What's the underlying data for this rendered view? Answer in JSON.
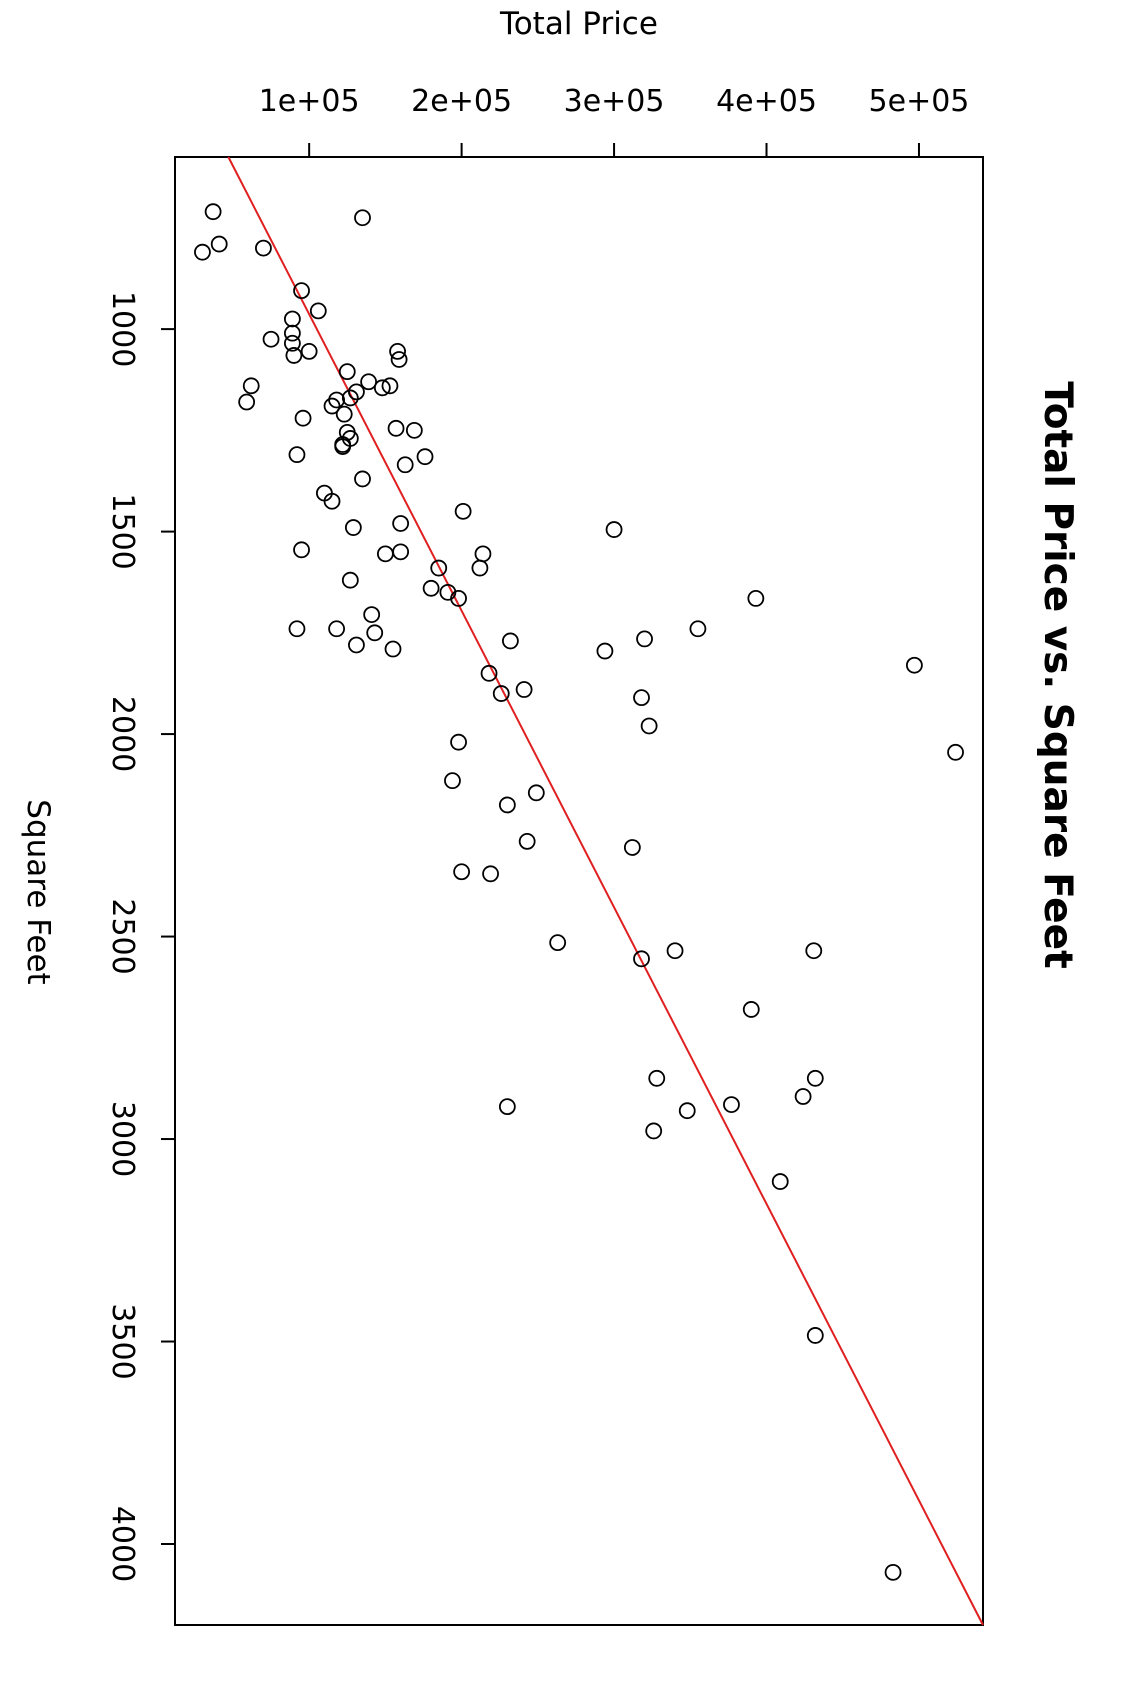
{
  "chart_data": {
    "type": "scatter",
    "title": "Total Price vs. Square Feet",
    "xlabel": "Square Feet",
    "ylabel": "Total Price",
    "x_ticks": [
      "1000",
      "1500",
      "2000",
      "2500",
      "3000",
      "3500",
      "4000"
    ],
    "y_ticks": [
      "1e+05",
      "2e+05",
      "3e+05",
      "4e+05",
      "5e+05"
    ],
    "xlim": [
      575,
      4200
    ],
    "ylim": [
      12000,
      542000
    ],
    "grid": false,
    "legend": "none",
    "colors": {
      "points": "#000000",
      "fit_line": "#e02020"
    },
    "fit_line": {
      "x": [
        575,
        4200
      ],
      "y": [
        47000,
        542000
      ]
    },
    "points": [
      {
        "x": 710,
        "y": 37000
      },
      {
        "x": 725,
        "y": 135000
      },
      {
        "x": 790,
        "y": 41000
      },
      {
        "x": 810,
        "y": 30000
      },
      {
        "x": 800,
        "y": 70000
      },
      {
        "x": 905,
        "y": 95000
      },
      {
        "x": 955,
        "y": 106000
      },
      {
        "x": 975,
        "y": 89000
      },
      {
        "x": 1010,
        "y": 89000
      },
      {
        "x": 1035,
        "y": 89000
      },
      {
        "x": 1025,
        "y": 75000
      },
      {
        "x": 1055,
        "y": 100000
      },
      {
        "x": 1065,
        "y": 90000
      },
      {
        "x": 1055,
        "y": 158000
      },
      {
        "x": 1075,
        "y": 159000
      },
      {
        "x": 1105,
        "y": 125000
      },
      {
        "x": 1130,
        "y": 139000
      },
      {
        "x": 1140,
        "y": 153000
      },
      {
        "x": 1145,
        "y": 148000
      },
      {
        "x": 1140,
        "y": 62000
      },
      {
        "x": 1155,
        "y": 131000
      },
      {
        "x": 1170,
        "y": 127000
      },
      {
        "x": 1180,
        "y": 59000
      },
      {
        "x": 1175,
        "y": 118000
      },
      {
        "x": 1190,
        "y": 115000
      },
      {
        "x": 1210,
        "y": 123000
      },
      {
        "x": 1220,
        "y": 96000
      },
      {
        "x": 1245,
        "y": 157000
      },
      {
        "x": 1250,
        "y": 169000
      },
      {
        "x": 1255,
        "y": 125000
      },
      {
        "x": 1270,
        "y": 127000
      },
      {
        "x": 1285,
        "y": 122000
      },
      {
        "x": 1290,
        "y": 122000
      },
      {
        "x": 1310,
        "y": 92000
      },
      {
        "x": 1315,
        "y": 176000
      },
      {
        "x": 1335,
        "y": 163000
      },
      {
        "x": 1370,
        "y": 135000
      },
      {
        "x": 1405,
        "y": 110000
      },
      {
        "x": 1425,
        "y": 115000
      },
      {
        "x": 1450,
        "y": 201000
      },
      {
        "x": 1480,
        "y": 160000
      },
      {
        "x": 1490,
        "y": 129000
      },
      {
        "x": 1495,
        "y": 300000
      },
      {
        "x": 1545,
        "y": 95000
      },
      {
        "x": 1550,
        "y": 160000
      },
      {
        "x": 1555,
        "y": 150000
      },
      {
        "x": 1555,
        "y": 214000
      },
      {
        "x": 1590,
        "y": 185000
      },
      {
        "x": 1590,
        "y": 212000
      },
      {
        "x": 1620,
        "y": 127000
      },
      {
        "x": 1640,
        "y": 180000
      },
      {
        "x": 1650,
        "y": 191000
      },
      {
        "x": 1665,
        "y": 198000
      },
      {
        "x": 1665,
        "y": 393000
      },
      {
        "x": 1705,
        "y": 141000
      },
      {
        "x": 1740,
        "y": 92000
      },
      {
        "x": 1740,
        "y": 118000
      },
      {
        "x": 1740,
        "y": 355000
      },
      {
        "x": 1750,
        "y": 143000
      },
      {
        "x": 1765,
        "y": 320000
      },
      {
        "x": 1770,
        "y": 232000
      },
      {
        "x": 1780,
        "y": 131000
      },
      {
        "x": 1790,
        "y": 155000
      },
      {
        "x": 1795,
        "y": 294000
      },
      {
        "x": 1830,
        "y": 497000
      },
      {
        "x": 1850,
        "y": 218000
      },
      {
        "x": 1890,
        "y": 241000
      },
      {
        "x": 1900,
        "y": 226000
      },
      {
        "x": 1910,
        "y": 318000
      },
      {
        "x": 1980,
        "y": 323000
      },
      {
        "x": 2020,
        "y": 198000
      },
      {
        "x": 2045,
        "y": 524000
      },
      {
        "x": 2115,
        "y": 194000
      },
      {
        "x": 2145,
        "y": 249000
      },
      {
        "x": 2175,
        "y": 230000
      },
      {
        "x": 2265,
        "y": 243000
      },
      {
        "x": 2280,
        "y": 312000
      },
      {
        "x": 2340,
        "y": 200000
      },
      {
        "x": 2345,
        "y": 219000
      },
      {
        "x": 2515,
        "y": 263000
      },
      {
        "x": 2535,
        "y": 340000
      },
      {
        "x": 2535,
        "y": 431000
      },
      {
        "x": 2555,
        "y": 318000
      },
      {
        "x": 2680,
        "y": 390000
      },
      {
        "x": 2850,
        "y": 328000
      },
      {
        "x": 2850,
        "y": 432000
      },
      {
        "x": 2895,
        "y": 424000
      },
      {
        "x": 2915,
        "y": 377000
      },
      {
        "x": 2920,
        "y": 230000
      },
      {
        "x": 2930,
        "y": 348000
      },
      {
        "x": 2980,
        "y": 326000
      },
      {
        "x": 3105,
        "y": 409000
      },
      {
        "x": 3485,
        "y": 432000
      },
      {
        "x": 4070,
        "y": 483000
      }
    ]
  }
}
